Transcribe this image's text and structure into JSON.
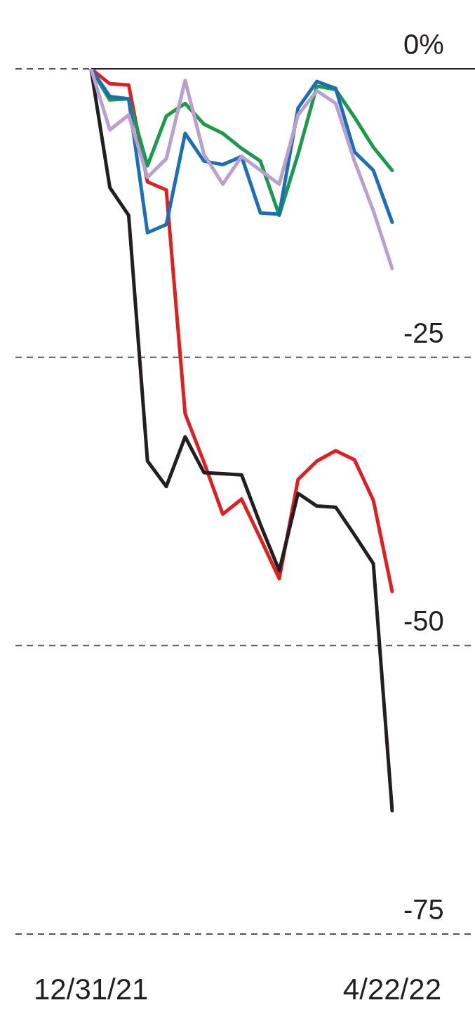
{
  "chart_data": {
    "type": "line",
    "categories": [
      "12/31/21",
      null,
      null,
      null,
      null,
      null,
      null,
      null,
      null,
      null,
      null,
      null,
      null,
      null,
      null,
      null,
      "4/22/22"
    ],
    "series": [
      {
        "color": "#b9a0d0",
        "values": [
          0,
          -5.3,
          -4.0,
          -9.4,
          -7.8,
          -1.0,
          -7.4,
          -10.0,
          -7.6,
          -8.8,
          -10.0,
          -4.0,
          -1.9,
          -3.0,
          -8.0,
          -12.3,
          -17.3
        ]
      },
      {
        "color": "#1a6fb8",
        "values": [
          0,
          -2.4,
          -2.6,
          -14.2,
          -13.5,
          -5.6,
          -8.0,
          -8.3,
          -7.6,
          -12.5,
          -12.6,
          -3.4,
          -1.1,
          -1.7,
          -7.2,
          -8.8,
          -13.3
        ]
      },
      {
        "color": "#1a9a4a",
        "values": [
          0,
          -2.7,
          -2.6,
          -8.4,
          -4.1,
          -3.0,
          -4.8,
          -5.6,
          -6.9,
          -8.0,
          -12.7,
          -7.4,
          -1.5,
          -1.8,
          -4.2,
          -6.8,
          -8.8
        ]
      },
      {
        "color": "#231f20",
        "values": [
          0,
          -10.3,
          -12.7,
          -34.0,
          -36.2,
          -31.9,
          -35.0,
          -35.1,
          -35.2,
          -39.5,
          -43.5,
          -36.8,
          -37.9,
          -38.0,
          -40.4,
          -42.9,
          -64.3
        ]
      },
      {
        "color": "#e02020",
        "values": [
          0,
          -1.3,
          -1.4,
          -9.8,
          -10.5,
          -29.9,
          -34.1,
          -38.6,
          -37.3,
          -40.7,
          -44.2,
          -35.6,
          -34.0,
          -33.1,
          -33.9,
          -37.4,
          -45.3
        ]
      }
    ],
    "ylim": [
      -75,
      0
    ],
    "yticks": [
      {
        "value": 0,
        "label": "0%"
      },
      -25,
      -50,
      -75
    ],
    "grid": "y",
    "line_style": "solid",
    "marker": "none",
    "ref_lines": [
      {
        "axis": "y",
        "value": 0,
        "color": "#231f20",
        "line_style": "solid"
      }
    ],
    "legend": false
  }
}
